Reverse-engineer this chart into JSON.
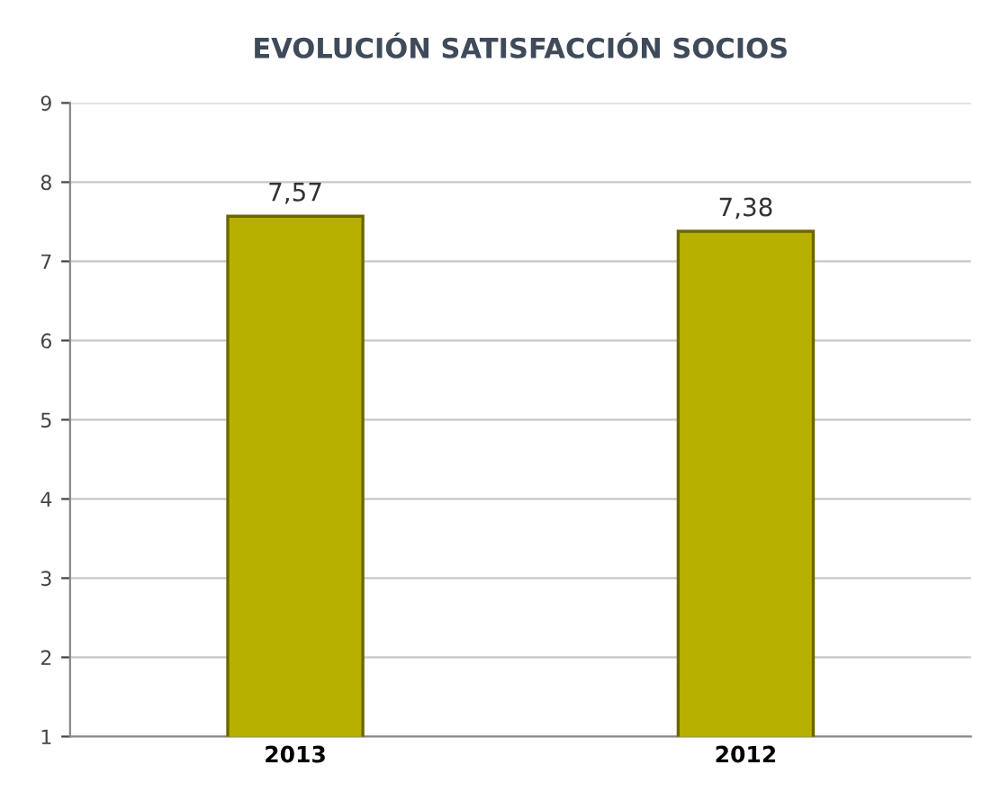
{
  "chart_data": {
    "type": "bar",
    "title": "EVOLUCIÓN SATISFACCIÓN SOCIOS",
    "categories": [
      "2013",
      "2012"
    ],
    "values": [
      7.57,
      7.38
    ],
    "value_labels": [
      "7,57",
      "7,38"
    ],
    "color": "#b8b000",
    "ylim": [
      1,
      9
    ],
    "yticks": [
      1,
      2,
      3,
      4,
      5,
      6,
      7,
      8,
      9
    ],
    "grid": "y"
  }
}
